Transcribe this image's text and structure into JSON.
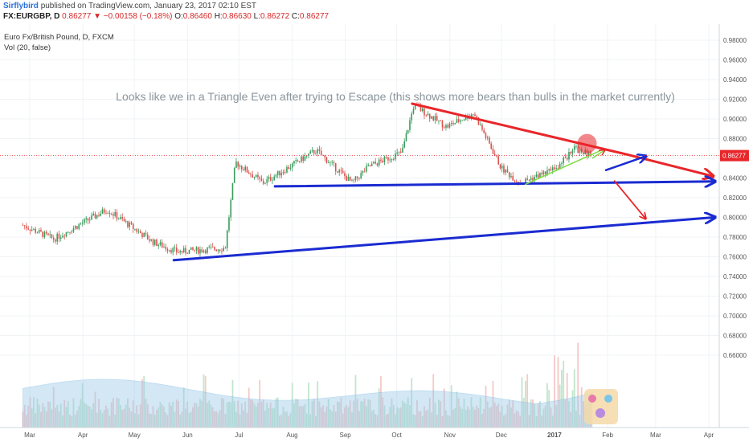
{
  "header": {
    "author": "Sirflybird",
    "published": "published on TradingView.com, January 23, 2017 02:10 EST",
    "symbol": "FX:EURGBP, D",
    "last": "0.86277",
    "change": "−0.00158 (−0.18%)",
    "open_label": "O:",
    "open": "0.86460",
    "high_label": "H:",
    "high": "0.86630",
    "low_label": "L:",
    "low": "0.86272",
    "close_label": "C:",
    "close": "0.86277"
  },
  "legend": {
    "title": "Euro Fx/British Pound, D, FXCM",
    "volume": "Vol (20, false)"
  },
  "annotation": "Looks like we in a Triangle Even after trying to Escape (this shows more bears than bulls in the market currently)",
  "colors": {
    "up": "#3a9b5c",
    "down": "#d9534f",
    "resistance": "#e8262a",
    "support": "#1a2bd1",
    "trend": "#7ddc3f",
    "volume_ma": "#9ecbe9",
    "last_price": "#e8262a"
  },
  "chart_data": {
    "type": "line",
    "title": "Euro Fx/British Pound, D, FXCM",
    "x_ticks": [
      "Mar",
      "Apr",
      "May",
      "Jun",
      "Jul",
      "Aug",
      "Sep",
      "Oct",
      "Nov",
      "Dec",
      "2017",
      "Feb",
      "Mar",
      "Apr"
    ],
    "y_ticks": [
      "0.98000",
      "0.96000",
      "0.94000",
      "0.92000",
      "0.90000",
      "0.88000",
      "0.86000",
      "0.84000",
      "0.82000",
      "0.80000",
      "0.78000",
      "0.76000",
      "0.74000",
      "0.72000",
      "0.70000",
      "0.68000",
      "0.66000"
    ],
    "ylim": [
      0.655,
      0.99
    ],
    "last_price_label": "0.86277",
    "series": [
      {
        "type": "line",
        "x": [
          "2016-02-26",
          "2016-03-15",
          "2016-04-15",
          "2016-05-12",
          "2016-05-26",
          "2016-06-23",
          "2016-06-29",
          "2016-07-15",
          "2016-08-15",
          "2016-09-05",
          "2016-09-15",
          "2016-10-04",
          "2016-10-11",
          "2016-10-30",
          "2016-11-15",
          "2016-12-01",
          "2016-12-12",
          "2017-01-02",
          "2017-01-13",
          "2017-01-23"
        ],
        "values": [
          0.792,
          0.778,
          0.808,
          0.775,
          0.765,
          0.769,
          0.856,
          0.835,
          0.868,
          0.835,
          0.852,
          0.866,
          0.914,
          0.892,
          0.906,
          0.85,
          0.835,
          0.85,
          0.87,
          0.8628
        ]
      }
    ],
    "drawings": [
      {
        "kind": "resistance",
        "x": [
          "2016-10-10",
          "2017-02-12"
        ],
        "values": [
          0.9155,
          0.864
        ]
      },
      {
        "kind": "resistance-extension",
        "x": [
          "2017-02-12",
          "2017-04-03"
        ],
        "values": [
          0.864,
          0.842
        ]
      },
      {
        "kind": "upper-support",
        "x": [
          "2016-07-22",
          "2017-04-04"
        ],
        "values": [
          0.8315,
          0.8365
        ]
      },
      {
        "kind": "lower-support",
        "x": [
          "2016-05-24",
          "2017-04-04"
        ],
        "values": [
          0.7565,
          0.8
        ]
      },
      {
        "kind": "rising-trend",
        "x": [
          "2016-12-15",
          "2017-01-28"
        ],
        "values": [
          0.8335,
          0.868
        ]
      },
      {
        "kind": "projection-up",
        "x": [
          "2017-01-31",
          "2017-02-23"
        ],
        "values": [
          0.848,
          0.862
        ]
      },
      {
        "kind": "projection-down",
        "x": [
          "2017-02-05",
          "2017-02-23"
        ],
        "values": [
          0.837,
          0.799
        ]
      }
    ],
    "highlight": {
      "x": "2017-01-20",
      "value": 0.875
    }
  }
}
